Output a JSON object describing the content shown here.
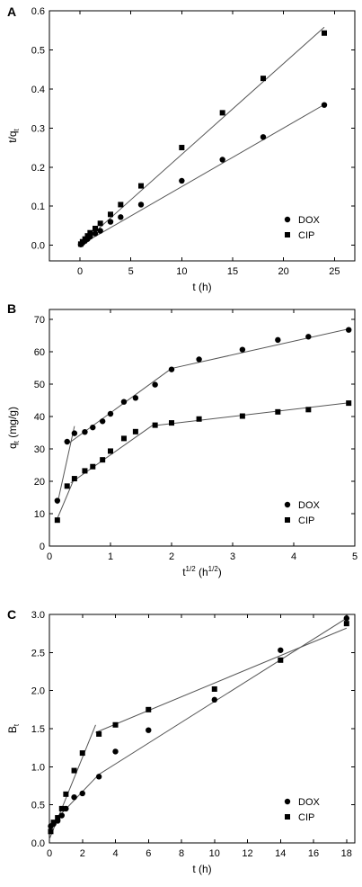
{
  "chart_data": [
    {
      "panel": "A",
      "type": "scatter",
      "xlabel": "t (h)",
      "ylabel": "t/q",
      "ylabel_sub": "t",
      "xlim": [
        -3,
        27
      ],
      "ylim": [
        -0.04,
        0.6
      ],
      "xticks": [
        0,
        5,
        10,
        15,
        20,
        25
      ],
      "yticks": [
        0.0,
        0.1,
        0.2,
        0.3,
        0.4,
        0.5,
        0.6
      ],
      "ytick_decimals": 1,
      "legend_position": "lower-right",
      "series": [
        {
          "name": "DOX",
          "marker": "circle",
          "x": [
            0.08,
            0.25,
            0.5,
            0.75,
            1,
            1.5,
            2,
            3,
            4,
            6,
            10,
            14,
            18,
            24
          ],
          "y": [
            0.002,
            0.006,
            0.011,
            0.016,
            0.022,
            0.03,
            0.037,
            0.06,
            0.072,
            0.104,
            0.165,
            0.219,
            0.277,
            0.359
          ]
        },
        {
          "name": "CIP",
          "marker": "square",
          "x": [
            0.08,
            0.25,
            0.5,
            0.75,
            1,
            1.5,
            2,
            3,
            4,
            6,
            10,
            14,
            18,
            24
          ],
          "y": [
            0.003,
            0.009,
            0.016,
            0.024,
            0.032,
            0.043,
            0.056,
            0.079,
            0.104,
            0.152,
            0.25,
            0.339,
            0.427,
            0.543
          ]
        }
      ],
      "fit_lines": [
        {
          "x": [
            0,
            24
          ],
          "y": [
            0.0,
            0.36
          ]
        },
        {
          "x": [
            0,
            24
          ],
          "y": [
            0.0,
            0.558
          ]
        }
      ]
    },
    {
      "panel": "B",
      "type": "scatter",
      "xlabel": "t",
      "xlabel_sup": "1/2",
      "xlabel_unit": "(h",
      "xlabel_unit_sup": "1/2",
      "xlabel_end": ")",
      "ylabel": "q",
      "ylabel_sub": "t",
      "ylabel_unit": "(mg/g)",
      "xlim": [
        0,
        5
      ],
      "ylim": [
        0,
        73
      ],
      "xticks": [
        0,
        1,
        2,
        3,
        4,
        5
      ],
      "yticks": [
        0,
        10,
        20,
        30,
        40,
        50,
        60,
        70
      ],
      "ytick_decimals": 0,
      "legend_position": "lower-right",
      "series": [
        {
          "name": "DOX",
          "marker": "circle",
          "x": [
            0.13,
            0.29,
            0.41,
            0.58,
            0.71,
            0.87,
            1.0,
            1.22,
            1.41,
            1.73,
            2.0,
            2.45,
            3.16,
            3.74,
            4.24,
            4.9
          ],
          "y": [
            14,
            32.2,
            34.8,
            35.2,
            36.6,
            38.5,
            40.8,
            44.5,
            45.7,
            49.8,
            54.5,
            57.6,
            60.6,
            63.6,
            64.6,
            66.7
          ]
        },
        {
          "name": "CIP",
          "marker": "square",
          "x": [
            0.13,
            0.29,
            0.41,
            0.58,
            0.71,
            0.87,
            1.0,
            1.22,
            1.41,
            1.73,
            2.0,
            2.45,
            3.16,
            3.74,
            4.24,
            4.9
          ],
          "y": [
            8,
            18.5,
            20.8,
            23.2,
            24.5,
            26.6,
            29.3,
            33.2,
            35.3,
            37.3,
            38.0,
            39.2,
            40.1,
            41.4,
            42.1,
            44.1
          ]
        }
      ],
      "fit_lines": [
        {
          "x": [
            0.13,
            0.41
          ],
          "y": [
            13,
            37
          ]
        },
        {
          "x": [
            0.3,
            2.0
          ],
          "y": [
            31.5,
            54.8
          ]
        },
        {
          "x": [
            2.0,
            4.9
          ],
          "y": [
            54.8,
            67
          ]
        },
        {
          "x": [
            0.13,
            0.41
          ],
          "y": [
            8.5,
            21
          ]
        },
        {
          "x": [
            0.35,
            1.73
          ],
          "y": [
            19.5,
            37.8
          ]
        },
        {
          "x": [
            1.73,
            4.9
          ],
          "y": [
            37.2,
            44.2
          ]
        }
      ]
    },
    {
      "panel": "C",
      "type": "scatter",
      "xlabel": "t (h)",
      "ylabel": "B",
      "ylabel_sub": "t",
      "xlim": [
        0,
        18.5
      ],
      "ylim": [
        0,
        3
      ],
      "xticks": [
        0,
        2,
        4,
        6,
        8,
        10,
        12,
        14,
        16,
        18
      ],
      "yticks": [
        0.0,
        0.5,
        1.0,
        1.5,
        2.0,
        2.5,
        3.0
      ],
      "ytick_decimals": 1,
      "legend_position": "lower-right",
      "series": [
        {
          "name": "DOX",
          "marker": "circle",
          "x": [
            0.08,
            0.25,
            0.5,
            0.75,
            1,
            1.5,
            2,
            3,
            4,
            6,
            10,
            14,
            18
          ],
          "y": [
            0.22,
            0.25,
            0.29,
            0.36,
            0.45,
            0.6,
            0.65,
            0.87,
            1.2,
            1.48,
            1.88,
            2.53,
            2.95
          ]
        },
        {
          "name": "CIP",
          "marker": "square",
          "x": [
            0.08,
            0.25,
            0.5,
            0.75,
            1,
            1.5,
            2,
            3,
            4,
            6,
            10,
            14,
            18
          ],
          "y": [
            0.15,
            0.27,
            0.33,
            0.45,
            0.64,
            0.95,
            1.18,
            1.43,
            1.55,
            1.75,
            2.02,
            2.4,
            2.88
          ]
        }
      ],
      "fit_lines": [
        {
          "x": [
            0,
            3
          ],
          "y": [
            0.22,
            0.9
          ]
        },
        {
          "x": [
            3,
            18
          ],
          "y": [
            0.9,
            2.95
          ]
        },
        {
          "x": [
            0,
            2.8
          ],
          "y": [
            0.05,
            1.55
          ]
        },
        {
          "x": [
            2.8,
            18
          ],
          "y": [
            1.45,
            2.82
          ]
        }
      ]
    }
  ]
}
